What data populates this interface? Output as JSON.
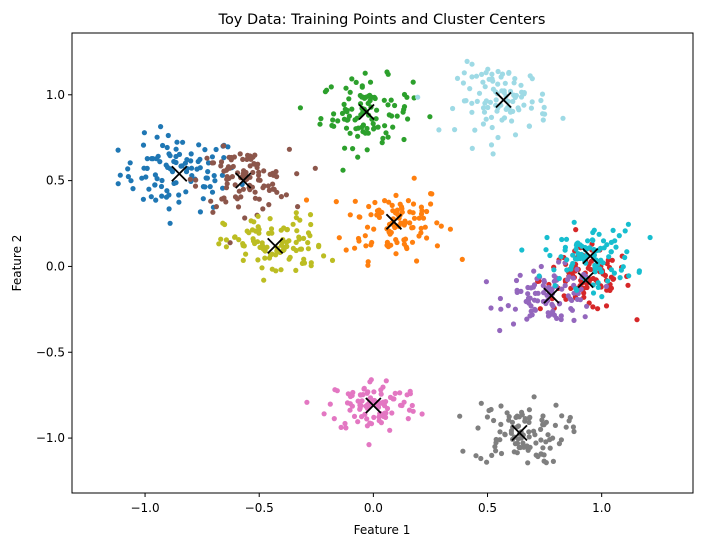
{
  "chart_data": {
    "type": "scatter",
    "title": "Toy Data: Training Points and Cluster Centers",
    "xlabel": "Feature 1",
    "ylabel": "Feature 2",
    "xlim": [
      -1.32,
      1.4
    ],
    "ylim": [
      -1.32,
      1.36
    ],
    "xticks": [
      -1.0,
      -0.5,
      0.0,
      0.5,
      1.0
    ],
    "xtick_labels": [
      "−1.0",
      "−0.5",
      "0.0",
      "0.5",
      "1.0"
    ],
    "yticks": [
      -1.0,
      -0.5,
      0.0,
      0.5,
      1.0
    ],
    "ytick_labels": [
      "−1.0",
      "−0.5",
      "0.0",
      "0.5",
      "1.0"
    ],
    "grid": false,
    "legend": "none",
    "marker": "dot",
    "center_marker": "x",
    "center_color": "#000000",
    "clusters": [
      {
        "color": "#1f77b4",
        "center": [
          -0.85,
          0.54
        ],
        "spread": [
          0.13,
          0.11
        ],
        "n": 100
      },
      {
        "color": "#ff7f0e",
        "center": [
          0.09,
          0.26
        ],
        "spread": [
          0.11,
          0.11
        ],
        "n": 100
      },
      {
        "color": "#2ca02c",
        "center": [
          -0.03,
          0.9
        ],
        "spread": [
          0.1,
          0.1
        ],
        "n": 100
      },
      {
        "color": "#d62728",
        "center": [
          0.93,
          -0.08
        ],
        "spread": [
          0.1,
          0.09
        ],
        "n": 100
      },
      {
        "color": "#9467bd",
        "center": [
          0.78,
          -0.17
        ],
        "spread": [
          0.1,
          0.08
        ],
        "n": 100
      },
      {
        "color": "#8c564b",
        "center": [
          -0.57,
          0.5
        ],
        "spread": [
          0.1,
          0.09
        ],
        "n": 100
      },
      {
        "color": "#e377c2",
        "center": [
          0.0,
          -0.81
        ],
        "spread": [
          0.1,
          0.08
        ],
        "n": 100
      },
      {
        "color": "#7f7f7f",
        "center": [
          0.64,
          -0.97
        ],
        "spread": [
          0.1,
          0.09
        ],
        "n": 100
      },
      {
        "color": "#bcbd22",
        "center": [
          -0.43,
          0.12
        ],
        "spread": [
          0.11,
          0.09
        ],
        "n": 100
      },
      {
        "color": "#17becf",
        "center": [
          0.95,
          0.06
        ],
        "spread": [
          0.1,
          0.09
        ],
        "n": 100
      },
      {
        "color": "#9edae5",
        "center": [
          0.57,
          0.97
        ],
        "spread": [
          0.1,
          0.1
        ],
        "n": 100
      }
    ]
  }
}
